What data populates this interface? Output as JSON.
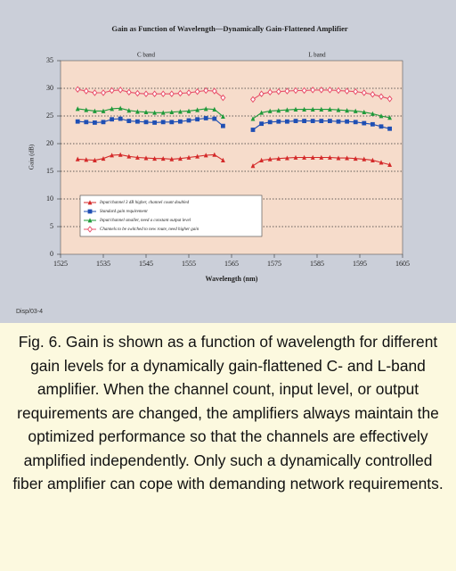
{
  "chart_data": {
    "type": "line",
    "title": "Gain as Function of Wavelength—Dynamically Gain-Flattened Amplifier",
    "x_label": "Wavelength (nm)",
    "y_label": "Gain (dB)",
    "annotations": [
      {
        "text": "C band",
        "x": 1545
      },
      {
        "text": "L band",
        "x": 1585
      }
    ],
    "x": [
      1529,
      1531,
      1533,
      1535,
      1537,
      1539,
      1541,
      1543,
      1545,
      1547,
      1549,
      1551,
      1553,
      1555,
      1557,
      1559,
      1561,
      1563,
      1566,
      1570,
      1572,
      1574,
      1576,
      1578,
      1580,
      1582,
      1584,
      1586,
      1588,
      1590,
      1592,
      1594,
      1596,
      1598,
      1600,
      1602
    ],
    "series": [
      {
        "name": "Input/channel 3 dB higher, channel count doubled",
        "color": "#d42a2a",
        "marker": "triangle",
        "values": [
          17.2,
          17.1,
          17.0,
          17.3,
          17.9,
          18.0,
          17.7,
          17.5,
          17.4,
          17.3,
          17.3,
          17.2,
          17.3,
          17.5,
          17.7,
          17.9,
          18.0,
          17.0,
          null,
          16.0,
          17.0,
          17.2,
          17.3,
          17.4,
          17.5,
          17.5,
          17.5,
          17.5,
          17.5,
          17.4,
          17.4,
          17.3,
          17.2,
          17.0,
          16.6,
          16.2
        ]
      },
      {
        "name": "Standard gain requirement",
        "color": "#1f4fb4",
        "marker": "square",
        "values": [
          24.0,
          23.9,
          23.8,
          23.9,
          24.4,
          24.5,
          24.1,
          24.0,
          23.9,
          23.8,
          23.9,
          23.9,
          24.0,
          24.2,
          24.4,
          24.6,
          24.5,
          23.2,
          null,
          22.5,
          23.6,
          23.9,
          24.0,
          24.0,
          24.1,
          24.1,
          24.1,
          24.1,
          24.1,
          24.0,
          24.0,
          23.9,
          23.7,
          23.5,
          23.1,
          22.7
        ]
      },
      {
        "name": "Input/channel smaller, need a constant output level",
        "color": "#1f9a3a",
        "marker": "triangle",
        "values": [
          26.3,
          26.1,
          25.9,
          25.9,
          26.3,
          26.4,
          26.0,
          25.8,
          25.7,
          25.6,
          25.6,
          25.7,
          25.8,
          25.9,
          26.1,
          26.3,
          26.2,
          24.9,
          null,
          24.5,
          25.6,
          25.9,
          26.0,
          26.1,
          26.2,
          26.2,
          26.2,
          26.2,
          26.2,
          26.1,
          26.0,
          25.9,
          25.7,
          25.4,
          25.0,
          24.7
        ]
      },
      {
        "name": "Channels to be switched to new route, need higher gain",
        "color": "#e8506a",
        "marker": "diamond",
        "values": [
          29.8,
          29.5,
          29.2,
          29.2,
          29.6,
          29.7,
          29.3,
          29.1,
          29.0,
          29.0,
          29.0,
          29.0,
          29.1,
          29.2,
          29.4,
          29.6,
          29.5,
          28.3,
          null,
          28.0,
          29.0,
          29.3,
          29.4,
          29.5,
          29.6,
          29.6,
          29.7,
          29.7,
          29.7,
          29.6,
          29.5,
          29.4,
          29.2,
          28.9,
          28.5,
          28.1
        ]
      }
    ],
    "xlim": [
      1525,
      1605
    ],
    "xticks": [
      1525,
      1535,
      1545,
      1555,
      1565,
      1575,
      1585,
      1595,
      1605
    ],
    "ylim": [
      0,
      35
    ],
    "yticks": [
      0,
      5,
      10,
      15,
      20,
      25,
      30,
      35
    ],
    "grid": true,
    "legend": "lower left",
    "plot_background": "#f6dccb"
  },
  "figure_id": "Disp/03-4",
  "caption": "Fig. 6. Gain is shown as a function of wavelength for different gain levels for a dynamically gain-flattened C- and L-band amplifier. When the channel count, input level, or output requirements are changed, the amplifiers always maintain the optimized performance so that the channels are effectively amplified independently. Only such a dynamically controlled fiber amplifier can cope with demanding network requirements."
}
